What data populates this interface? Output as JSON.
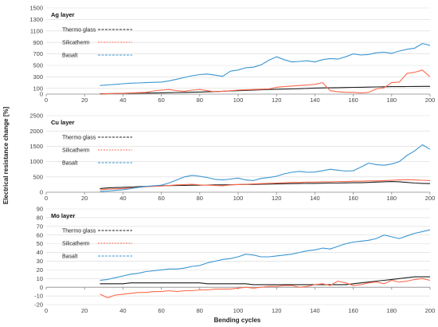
{
  "colors": {
    "Thermo glass": "#1f1f1f",
    "Silicatherm": "#ff6a4d",
    "Basalt": "#3b96d2",
    "grid": "#d9d9d9",
    "axis": "#8c8c8c"
  },
  "ylabel": "Electrical resistance change [%]",
  "xlabel": "Bending cycles",
  "chart_data": [
    {
      "type": "line",
      "title": "Ag layer",
      "ylim": [
        0,
        1500
      ],
      "yticks": [
        0,
        100,
        300,
        500,
        700,
        900,
        1100,
        1300,
        1500
      ],
      "xlim": [
        0,
        200
      ],
      "xticks": [
        0,
        20,
        40,
        60,
        80,
        100,
        120,
        140,
        160,
        180,
        200
      ],
      "grid": true,
      "legend": "top-left",
      "x": [
        28,
        32,
        36,
        40,
        44,
        48,
        52,
        56,
        60,
        64,
        68,
        72,
        76,
        80,
        84,
        88,
        92,
        96,
        100,
        104,
        108,
        112,
        116,
        120,
        124,
        128,
        132,
        136,
        140,
        144,
        148,
        152,
        156,
        160,
        164,
        168,
        172,
        176,
        180,
        184,
        188,
        192,
        196,
        200
      ],
      "series": [
        {
          "name": "Thermo glass",
          "values": [
            5,
            8,
            10,
            12,
            14,
            16,
            18,
            20,
            22,
            25,
            28,
            30,
            33,
            36,
            40,
            45,
            50,
            55,
            60,
            65,
            70,
            75,
            80,
            85,
            88,
            90,
            95,
            100,
            105,
            108,
            110,
            112,
            115,
            118,
            120,
            122,
            125,
            128,
            130,
            130,
            132,
            133,
            135,
            135
          ]
        },
        {
          "name": "Silicatherm",
          "values": [
            0,
            5,
            10,
            15,
            20,
            25,
            30,
            55,
            70,
            80,
            60,
            50,
            70,
            80,
            60,
            40,
            50,
            60,
            70,
            75,
            80,
            85,
            90,
            120,
            130,
            140,
            150,
            160,
            170,
            200,
            60,
            40,
            30,
            30,
            20,
            30,
            90,
            110,
            200,
            210,
            360,
            380,
            420,
            300
          ]
        },
        {
          "name": "Basalt",
          "values": [
            150,
            160,
            170,
            180,
            190,
            195,
            200,
            205,
            210,
            230,
            260,
            290,
            320,
            340,
            350,
            330,
            310,
            400,
            420,
            460,
            470,
            510,
            590,
            650,
            600,
            560,
            570,
            580,
            560,
            600,
            620,
            610,
            650,
            700,
            680,
            690,
            720,
            730,
            710,
            750,
            780,
            800,
            880,
            850
          ]
        }
      ]
    },
    {
      "type": "line",
      "title": "Cu layer",
      "ylim": [
        0,
        2500
      ],
      "yticks": [
        0,
        500,
        1000,
        1500,
        2000,
        2500
      ],
      "xlim": [
        0,
        200
      ],
      "xticks": [
        0,
        20,
        40,
        60,
        80,
        100,
        120,
        140,
        160,
        180,
        200
      ],
      "grid": true,
      "legend": "top-left",
      "x": [
        28,
        32,
        36,
        40,
        44,
        48,
        52,
        56,
        60,
        64,
        68,
        72,
        76,
        80,
        84,
        88,
        92,
        96,
        100,
        104,
        108,
        112,
        116,
        120,
        124,
        128,
        132,
        136,
        140,
        144,
        148,
        152,
        156,
        160,
        164,
        168,
        172,
        176,
        180,
        184,
        188,
        192,
        196,
        200
      ],
      "series": [
        {
          "name": "Thermo glass",
          "values": [
            120,
            140,
            150,
            160,
            170,
            180,
            190,
            200,
            210,
            215,
            220,
            225,
            230,
            230,
            235,
            240,
            240,
            245,
            250,
            255,
            255,
            260,
            265,
            270,
            275,
            280,
            285,
            290,
            290,
            295,
            300,
            300,
            305,
            310,
            310,
            320,
            330,
            340,
            350,
            340,
            320,
            300,
            290,
            280
          ]
        },
        {
          "name": "Silicatherm",
          "values": [
            80,
            100,
            110,
            120,
            140,
            160,
            180,
            190,
            200,
            220,
            240,
            250,
            260,
            240,
            230,
            220,
            210,
            240,
            250,
            260,
            270,
            280,
            290,
            300,
            310,
            320,
            320,
            330,
            330,
            340,
            340,
            350,
            350,
            360,
            360,
            370,
            370,
            380,
            390,
            400,
            410,
            400,
            390,
            380
          ]
        },
        {
          "name": "Basalt",
          "values": [
            20,
            40,
            60,
            80,
            120,
            160,
            190,
            210,
            230,
            300,
            400,
            500,
            550,
            520,
            480,
            420,
            400,
            430,
            460,
            400,
            380,
            450,
            480,
            520,
            600,
            650,
            680,
            650,
            660,
            700,
            750,
            720,
            690,
            700,
            820,
            950,
            900,
            880,
            920,
            1000,
            1200,
            1350,
            1550,
            1400
          ]
        }
      ]
    },
    {
      "type": "line",
      "title": "Mo layer",
      "ylim": [
        -20,
        90
      ],
      "yticks": [
        -20,
        -10,
        0,
        10,
        20,
        30,
        40,
        50,
        60,
        70,
        80,
        90
      ],
      "xlim": [
        0,
        200
      ],
      "xticks": [
        0,
        20,
        40,
        60,
        80,
        100,
        120,
        140,
        160,
        180,
        200
      ],
      "grid": true,
      "legend": "top-left",
      "x": [
        28,
        32,
        36,
        40,
        44,
        48,
        52,
        56,
        60,
        64,
        68,
        72,
        76,
        80,
        84,
        88,
        92,
        96,
        100,
        104,
        108,
        112,
        116,
        120,
        124,
        128,
        132,
        136,
        140,
        144,
        148,
        152,
        156,
        160,
        164,
        168,
        172,
        176,
        180,
        184,
        188,
        192,
        196,
        200
      ],
      "series": [
        {
          "name": "Thermo glass",
          "values": [
            4,
            4,
            4,
            4,
            5,
            5,
            5,
            5,
            5,
            5,
            5,
            5,
            5,
            5,
            4,
            4,
            4,
            4,
            4,
            4,
            3,
            3,
            3,
            3,
            3,
            3,
            3,
            3,
            3,
            3,
            3,
            3,
            3,
            4,
            5,
            6,
            7,
            8,
            9,
            10,
            11,
            12,
            12,
            12
          ]
        },
        {
          "name": "Silicatherm",
          "values": [
            -8,
            -12,
            -9,
            -8,
            -7,
            -6,
            -6,
            -5,
            -5,
            -4,
            -5,
            -4,
            -4,
            -3,
            -3,
            -2,
            -2,
            -2,
            -1,
            0,
            -1,
            0,
            1,
            1,
            2,
            2,
            0,
            1,
            3,
            4,
            2,
            7,
            5,
            2,
            3,
            5,
            6,
            4,
            8,
            6,
            7,
            9,
            10,
            8
          ]
        },
        {
          "name": "Basalt",
          "values": [
            8,
            9,
            11,
            13,
            15,
            16,
            18,
            19,
            20,
            21,
            21,
            22,
            24,
            25,
            28,
            30,
            32,
            33,
            35,
            38,
            37,
            35,
            35,
            36,
            37,
            38,
            40,
            42,
            43,
            45,
            44,
            47,
            50,
            52,
            53,
            54,
            56,
            60,
            58,
            56,
            59,
            62,
            64,
            66
          ]
        }
      ]
    }
  ]
}
